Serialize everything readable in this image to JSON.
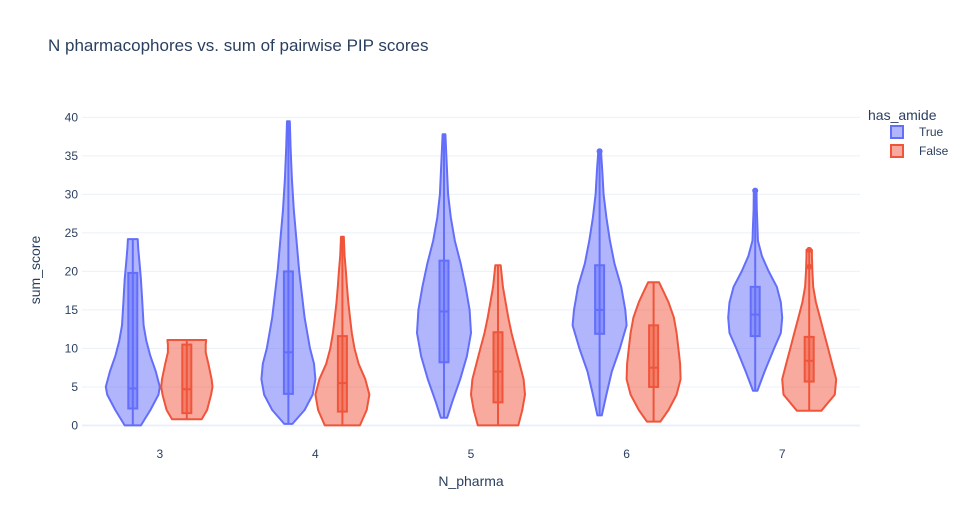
{
  "chart_data": {
    "type": "violin",
    "title": "N pharmacophores vs. sum of pairwise PIP scores",
    "xlabel": "N_pharma",
    "ylabel": "sum_score",
    "categories": [
      "3",
      "4",
      "5",
      "6",
      "7"
    ],
    "ylim": [
      -1.5,
      42
    ],
    "yticks": [
      0,
      5,
      10,
      15,
      20,
      25,
      30,
      35,
      40
    ],
    "legend": {
      "title": "has_amide",
      "position": "top-right"
    },
    "series": [
      {
        "name": "True",
        "color": "#636efa",
        "fill": "rgba(99,110,250,0.5)",
        "groups": [
          {
            "x": "3",
            "min": 0,
            "q1": 2.2,
            "median": 4.8,
            "q3": 19.8,
            "max": 24.2,
            "profile": [
              [
                0,
                0.3
              ],
              [
                2,
                0.65
              ],
              [
                4,
                0.95
              ],
              [
                5,
                1.0
              ],
              [
                7,
                0.85
              ],
              [
                9,
                0.65
              ],
              [
                11,
                0.5
              ],
              [
                13,
                0.4
              ],
              [
                16,
                0.35
              ],
              [
                19,
                0.3
              ],
              [
                21,
                0.25
              ],
              [
                23,
                0.2
              ],
              [
                24.2,
                0.18
              ]
            ]
          },
          {
            "x": "4",
            "min": 0.2,
            "q1": 4.1,
            "median": 9.5,
            "q3": 20.0,
            "max": 39.5,
            "profile": [
              [
                0.2,
                0.15
              ],
              [
                2,
                0.6
              ],
              [
                4,
                0.9
              ],
              [
                6,
                1.0
              ],
              [
                8,
                0.95
              ],
              [
                10,
                0.8
              ],
              [
                12,
                0.7
              ],
              [
                14,
                0.6
              ],
              [
                17,
                0.5
              ],
              [
                20,
                0.4
              ],
              [
                24,
                0.3
              ],
              [
                28,
                0.2
              ],
              [
                32,
                0.13
              ],
              [
                36,
                0.08
              ],
              [
                39.5,
                0.05
              ]
            ]
          },
          {
            "x": "5",
            "min": 1.0,
            "q1": 8.2,
            "median": 14.8,
            "q3": 21.4,
            "max": 37.8,
            "profile": [
              [
                1,
                0.12
              ],
              [
                3,
                0.3
              ],
              [
                6,
                0.6
              ],
              [
                9,
                0.85
              ],
              [
                12,
                1.0
              ],
              [
                15,
                0.95
              ],
              [
                18,
                0.8
              ],
              [
                21,
                0.62
              ],
              [
                24,
                0.4
              ],
              [
                27,
                0.25
              ],
              [
                30,
                0.15
              ],
              [
                34,
                0.1
              ],
              [
                37.8,
                0.05
              ]
            ]
          },
          {
            "x": "6",
            "min": 1.3,
            "q1": 11.9,
            "median": 15.0,
            "q3": 20.8,
            "max": 35.6,
            "outliers": [
              35.6
            ],
            "profile": [
              [
                1.3,
                0.08
              ],
              [
                4,
                0.25
              ],
              [
                7,
                0.45
              ],
              [
                10,
                0.75
              ],
              [
                13,
                1.0
              ],
              [
                15,
                0.95
              ],
              [
                18,
                0.8
              ],
              [
                21,
                0.55
              ],
              [
                24,
                0.38
              ],
              [
                27,
                0.25
              ],
              [
                30,
                0.15
              ],
              [
                33,
                0.1
              ],
              [
                35.6,
                0.05
              ]
            ]
          },
          {
            "x": "7",
            "min": 4.5,
            "q1": 11.6,
            "median": 14.4,
            "q3": 18.0,
            "max": 30.5,
            "outliers": [
              30.5
            ],
            "profile": [
              [
                4.5,
                0.08
              ],
              [
                7,
                0.35
              ],
              [
                10,
                0.7
              ],
              [
                12,
                0.95
              ],
              [
                14,
                1.0
              ],
              [
                16,
                0.95
              ],
              [
                18,
                0.8
              ],
              [
                20,
                0.5
              ],
              [
                22,
                0.25
              ],
              [
                24,
                0.1
              ],
              [
                26,
                0.08
              ],
              [
                28,
                0.06
              ],
              [
                30.5,
                0.05
              ]
            ]
          }
        ]
      },
      {
        "name": "False",
        "color": "#ef553b",
        "fill": "rgba(239,85,59,0.5)",
        "groups": [
          {
            "x": "3",
            "min": 0.8,
            "q1": 1.6,
            "median": 4.7,
            "q3": 10.5,
            "max": 11.1,
            "profile": [
              [
                0.8,
                0.55
              ],
              [
                2,
                0.75
              ],
              [
                4,
                0.9
              ],
              [
                5,
                0.95
              ],
              [
                6,
                0.92
              ],
              [
                8,
                0.8
              ],
              [
                9.5,
                0.7
              ],
              [
                10.5,
                0.7
              ],
              [
                11.1,
                0.72
              ]
            ]
          },
          {
            "x": "4",
            "min": 0,
            "q1": 1.8,
            "median": 5.5,
            "q3": 11.6,
            "max": 24.5,
            "profile": [
              [
                0,
                0.65
              ],
              [
                2,
                0.9
              ],
              [
                4,
                1.0
              ],
              [
                6,
                0.85
              ],
              [
                8,
                0.6
              ],
              [
                10,
                0.45
              ],
              [
                12,
                0.35
              ],
              [
                14,
                0.28
              ],
              [
                16,
                0.22
              ],
              [
                18,
                0.17
              ],
              [
                20,
                0.13
              ],
              [
                22,
                0.08
              ],
              [
                24.5,
                0.05
              ]
            ]
          },
          {
            "x": "5",
            "min": 0,
            "q1": 3.0,
            "median": 7.0,
            "q3": 12.1,
            "max": 20.8,
            "profile": [
              [
                0,
                0.75
              ],
              [
                2,
                0.9
              ],
              [
                4,
                1.0
              ],
              [
                6,
                0.95
              ],
              [
                8,
                0.8
              ],
              [
                10,
                0.65
              ],
              [
                12,
                0.5
              ],
              [
                14,
                0.38
              ],
              [
                16,
                0.28
              ],
              [
                18,
                0.18
              ],
              [
                20.8,
                0.1
              ]
            ]
          },
          {
            "x": "6",
            "min": 0.5,
            "q1": 5.0,
            "median": 7.5,
            "q3": 13.0,
            "max": 18.6,
            "profile": [
              [
                0.5,
                0.25
              ],
              [
                2,
                0.55
              ],
              [
                4,
                0.85
              ],
              [
                6,
                1.0
              ],
              [
                8,
                0.98
              ],
              [
                10,
                0.92
              ],
              [
                12,
                0.85
              ],
              [
                14,
                0.75
              ],
              [
                16,
                0.55
              ],
              [
                17.5,
                0.35
              ],
              [
                18.6,
                0.2
              ]
            ]
          },
          {
            "x": "7",
            "min": 1.9,
            "q1": 5.7,
            "median": 8.4,
            "q3": 11.5,
            "max": 22.8,
            "outliers": [
              20.6,
              22.8
            ],
            "profile": [
              [
                1.9,
                0.45
              ],
              [
                4,
                0.95
              ],
              [
                6,
                1.0
              ],
              [
                8,
                0.85
              ],
              [
                10,
                0.7
              ],
              [
                12,
                0.55
              ],
              [
                14,
                0.4
              ],
              [
                16,
                0.25
              ],
              [
                18,
                0.15
              ],
              [
                20,
                0.12
              ],
              [
                22,
                0.1
              ],
              [
                22.8,
                0.1
              ]
            ]
          }
        ]
      }
    ]
  }
}
